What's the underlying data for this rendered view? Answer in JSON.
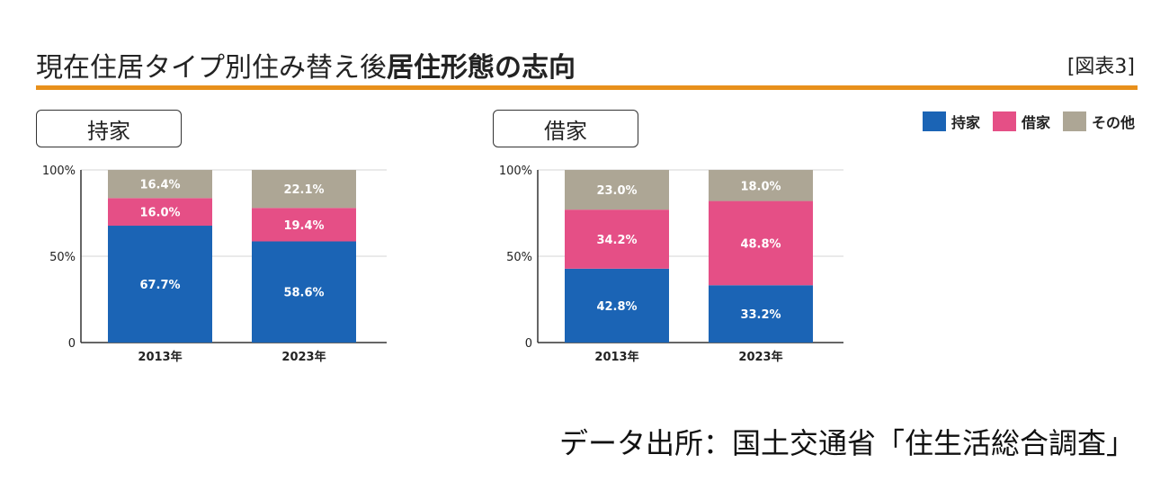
{
  "header": {
    "title_regular": "現在住居タイプ別住み替え後",
    "title_bold": "居住形態の志向",
    "figure_label": "[図表3]"
  },
  "legend": [
    {
      "label": "持家",
      "color": "#1b64b5"
    },
    {
      "label": "借家",
      "color": "#e54f86"
    },
    {
      "label": "その他",
      "color": "#ada695"
    }
  ],
  "source": "データ出所：国土交通省「住生活総合調査」",
  "chart_data": [
    {
      "type": "bar",
      "stacked": true,
      "title": "持家",
      "categories": [
        "2013年",
        "2023年"
      ],
      "yticks": [
        "0",
        "50%",
        "100%"
      ],
      "ylim": [
        0,
        100
      ],
      "series": [
        {
          "name": "持家",
          "values": [
            67.7,
            58.6
          ],
          "labels": [
            "67.7%",
            "58.6%"
          ]
        },
        {
          "name": "借家",
          "values": [
            16.0,
            19.4
          ],
          "labels": [
            "16.0%",
            "19.4%"
          ]
        },
        {
          "name": "その他",
          "values": [
            16.4,
            22.1
          ],
          "labels": [
            "16.4%",
            "22.1%"
          ]
        }
      ]
    },
    {
      "type": "bar",
      "stacked": true,
      "title": "借家",
      "categories": [
        "2013年",
        "2023年"
      ],
      "yticks": [
        "0",
        "50%",
        "100%"
      ],
      "ylim": [
        0,
        100
      ],
      "series": [
        {
          "name": "持家",
          "values": [
            42.8,
            33.2
          ],
          "labels": [
            "42.8%",
            "33.2%"
          ]
        },
        {
          "name": "借家",
          "values": [
            34.2,
            48.8
          ],
          "labels": [
            "34.2%",
            "48.8%"
          ]
        },
        {
          "name": "その他",
          "values": [
            23.0,
            18.0
          ],
          "labels": [
            "23.0%",
            "18.0%"
          ]
        }
      ]
    }
  ]
}
